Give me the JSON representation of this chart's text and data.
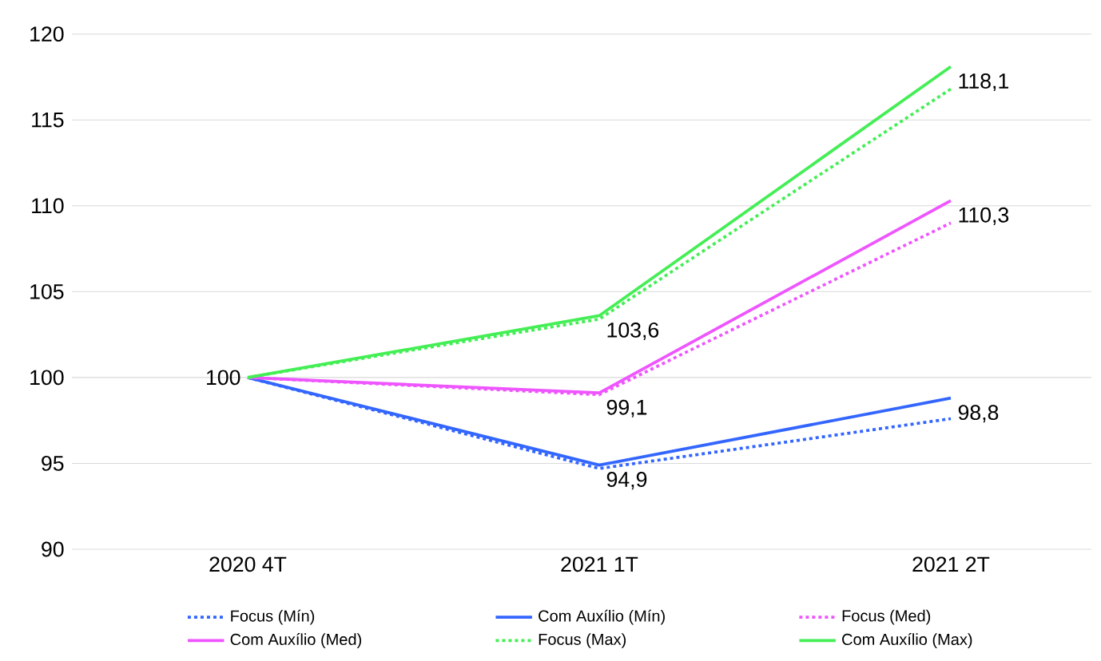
{
  "chart_data": {
    "type": "line",
    "categories": [
      "2020 4T",
      "2021 1T",
      "2021 2T"
    ],
    "series": [
      {
        "name": "Focus (Mín)",
        "color": "#3366ff",
        "line_style": "dotted",
        "values": [
          100,
          94.7,
          97.6
        ]
      },
      {
        "name": "Com Auxílio (Mín)",
        "color": "#3366ff",
        "line_style": "solid",
        "values": [
          100,
          94.9,
          98.8
        ],
        "value_labels": [
          null,
          "94,9",
          "98,8"
        ]
      },
      {
        "name": "Focus (Med)",
        "color": "#ee55ff",
        "line_style": "dotted",
        "values": [
          100,
          99.0,
          109.0
        ]
      },
      {
        "name": "Com Auxílio (Med)",
        "color": "#ee55ff",
        "line_style": "solid",
        "values": [
          100,
          99.1,
          110.3
        ],
        "value_labels": [
          "100",
          "99,1",
          "110,3"
        ]
      },
      {
        "name": "Focus (Max)",
        "color": "#44ee55",
        "line_style": "dotted",
        "values": [
          100,
          103.4,
          116.8
        ]
      },
      {
        "name": "Com Auxílio (Max)",
        "color": "#44ee55",
        "line_style": "solid",
        "values": [
          100,
          103.6,
          118.1
        ],
        "value_labels": [
          null,
          "103,6",
          "118,1"
        ]
      }
    ],
    "ylim": [
      90,
      120
    ],
    "yticks": [
      90,
      95,
      100,
      105,
      110,
      115,
      120
    ],
    "grid": "y",
    "legend": "bottom",
    "marker": "none"
  }
}
